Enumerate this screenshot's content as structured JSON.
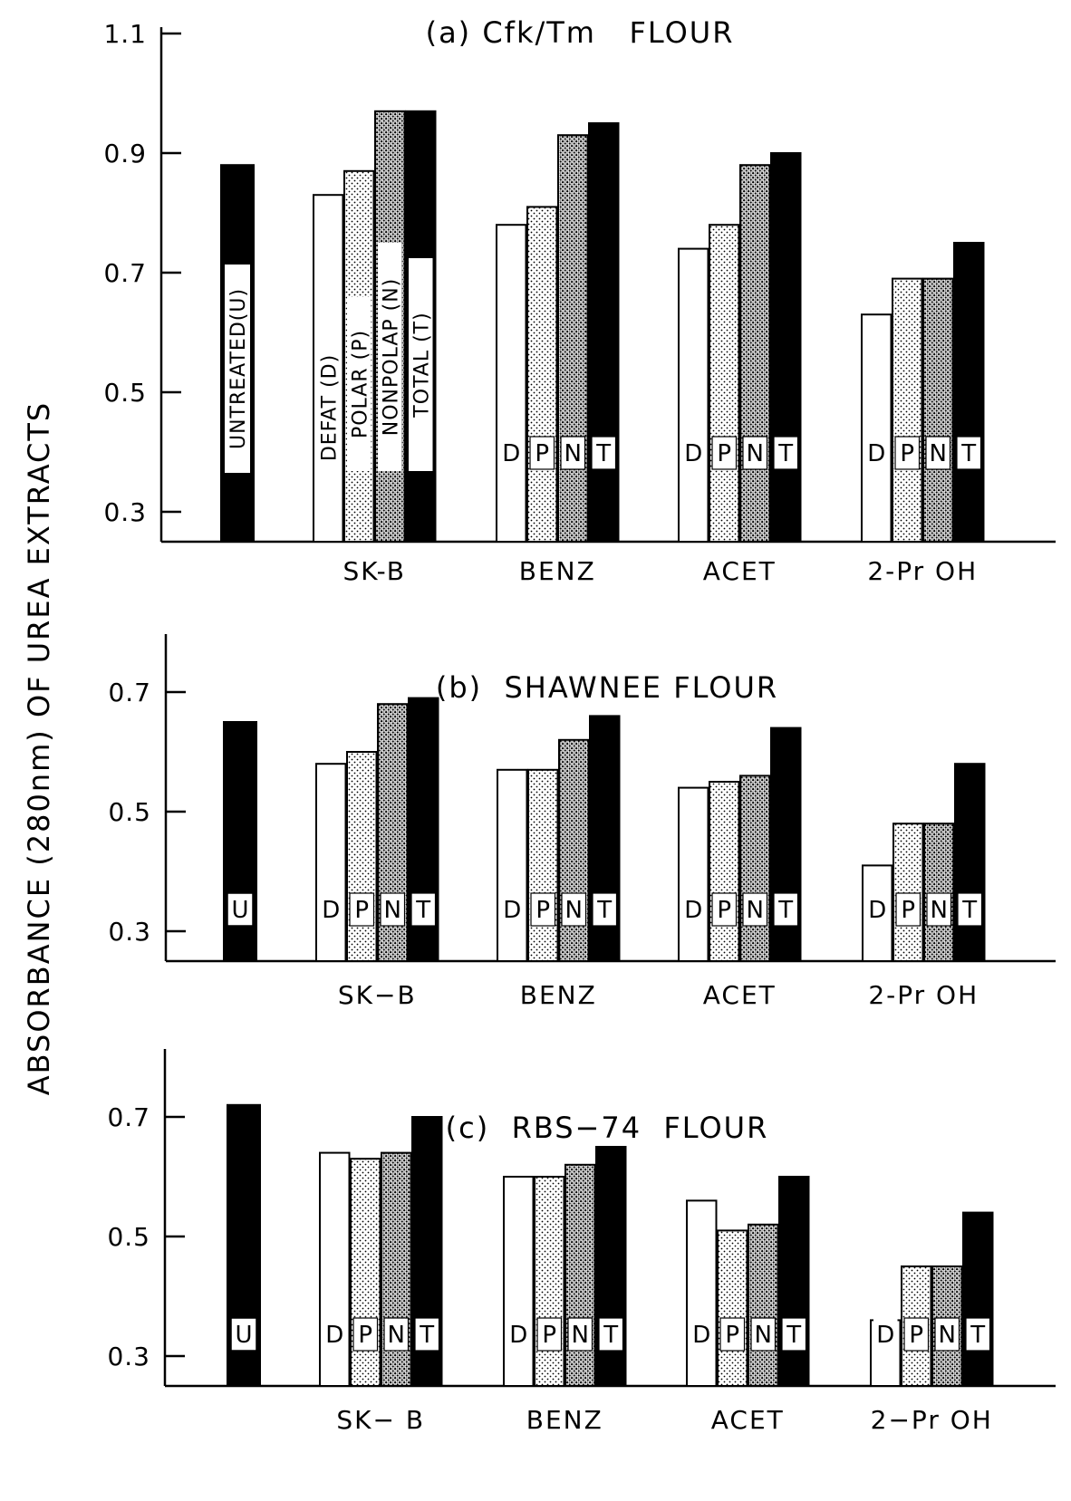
{
  "figure": {
    "y_axis_label": "ABSORBANCE (280nm) OF UREA EXTRACTS"
  },
  "style": {
    "ink": "#000000",
    "paper": "#ffffff",
    "patterns": {
      "D": "open",
      "P": "fine-dots",
      "N": "dense-dots",
      "T": "solid-black",
      "U": "solid-black"
    }
  },
  "chart_data": [
    {
      "type": "bar",
      "title": "(a) Cfk/Tm   FLOUR",
      "ylabel": "ABSORBANCE (280nm) OF UREA EXTRACTS",
      "ylim": [
        0.25,
        1.1
      ],
      "yticks": [
        "0.3",
        "0.5",
        "0.7",
        "0.9",
        "1.1"
      ],
      "grid": false,
      "control": {
        "key": "U",
        "label": "UNTREATED(U)",
        "value": 0.88
      },
      "treatment_legend": [
        "DEFAT (D)",
        "POLAR (P)",
        "NONPOLAP (N)",
        "TOTAL (T)"
      ],
      "categories": [
        "SK-B",
        "BENZ",
        "ACET",
        "2-Pr OH"
      ],
      "series": [
        {
          "name": "D",
          "values": [
            0.83,
            0.78,
            0.74,
            0.63
          ]
        },
        {
          "name": "P",
          "values": [
            0.87,
            0.81,
            0.78,
            0.69
          ]
        },
        {
          "name": "N",
          "values": [
            0.97,
            0.93,
            0.88,
            0.69
          ]
        },
        {
          "name": "T",
          "values": [
            0.97,
            0.95,
            0.9,
            0.75
          ]
        }
      ],
      "bar_letters": [
        "D",
        "P",
        "N",
        "T"
      ]
    },
    {
      "type": "bar",
      "title": "(b)  SHAWNEE FLOUR",
      "ylim": [
        0.25,
        0.8
      ],
      "yticks": [
        "0.3",
        "0.5",
        "0.7"
      ],
      "grid": false,
      "control": {
        "key": "U",
        "label": "U",
        "value": 0.65
      },
      "categories": [
        "SK−B",
        "BENZ",
        "ACET",
        "2-Pr OH"
      ],
      "series": [
        {
          "name": "D",
          "values": [
            0.58,
            0.57,
            0.54,
            0.41
          ]
        },
        {
          "name": "P",
          "values": [
            0.6,
            0.57,
            0.55,
            0.48
          ]
        },
        {
          "name": "N",
          "values": [
            0.68,
            0.62,
            0.56,
            0.48
          ]
        },
        {
          "name": "T",
          "values": [
            0.69,
            0.66,
            0.64,
            0.58
          ]
        }
      ],
      "bar_letters": [
        "D",
        "P",
        "N",
        "T"
      ]
    },
    {
      "type": "bar",
      "title": "(c)  RBS−74  FLOUR",
      "ylim": [
        0.25,
        0.8
      ],
      "yticks": [
        "0.3",
        "0.5",
        "0.7"
      ],
      "grid": false,
      "control": {
        "key": "U",
        "label": "U",
        "value": 0.72
      },
      "categories": [
        "SK− B",
        "BENZ",
        "ACET",
        "2−Pr OH"
      ],
      "series": [
        {
          "name": "D",
          "values": [
            0.64,
            0.6,
            0.56,
            0.36
          ]
        },
        {
          "name": "P",
          "values": [
            0.63,
            0.6,
            0.51,
            0.45
          ]
        },
        {
          "name": "N",
          "values": [
            0.64,
            0.62,
            0.52,
            0.45
          ]
        },
        {
          "name": "T",
          "values": [
            0.7,
            0.65,
            0.6,
            0.54
          ]
        }
      ],
      "bar_letters": [
        "D",
        "P",
        "N",
        "T"
      ]
    }
  ]
}
